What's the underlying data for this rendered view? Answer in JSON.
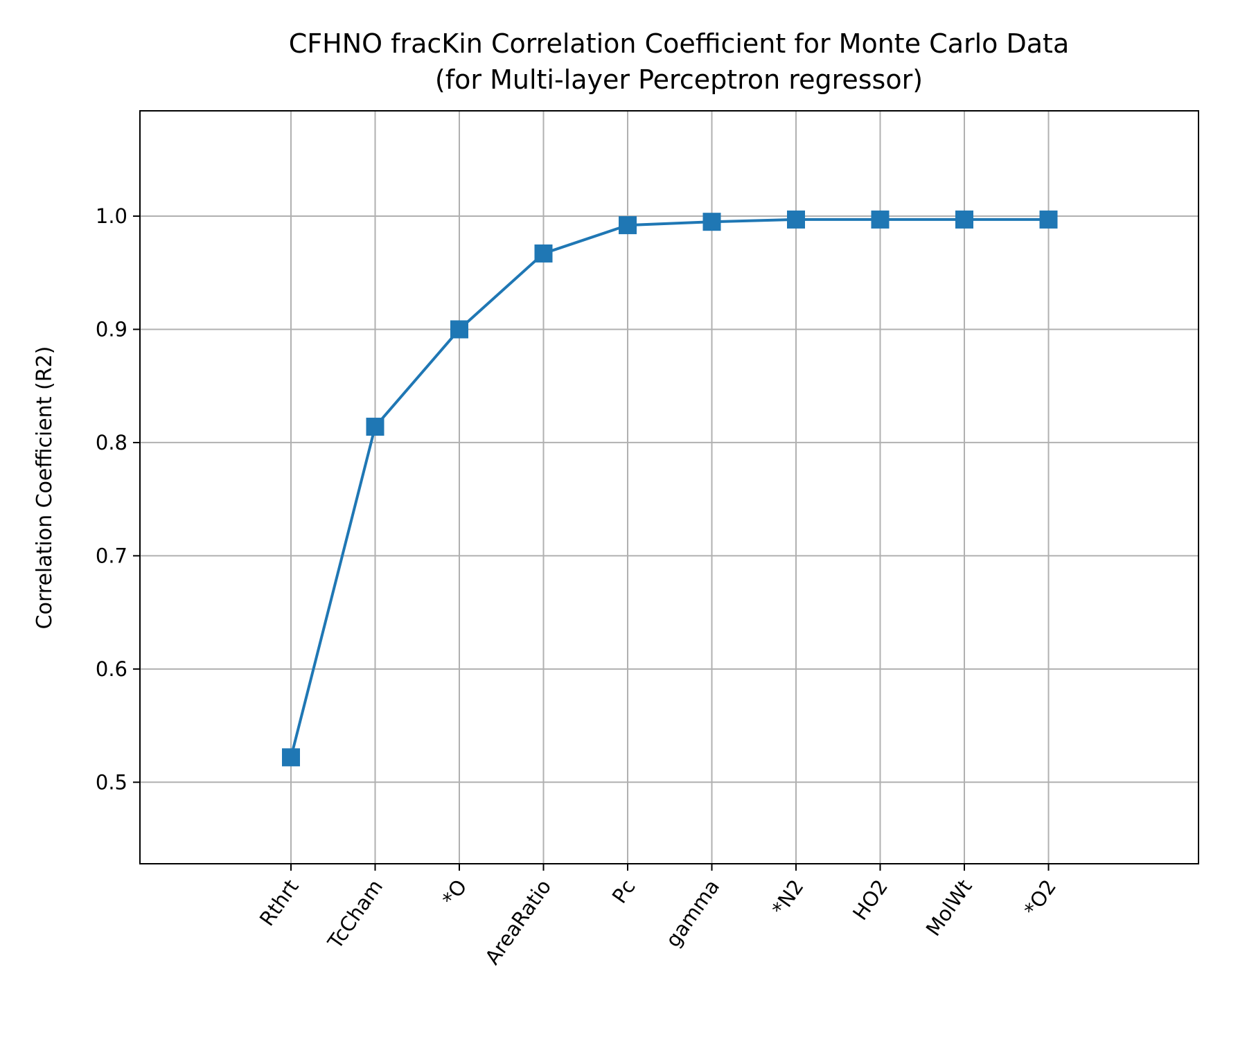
{
  "chart_data": {
    "type": "line",
    "title": "CFHNO fracKin Correlation Coefficient for Monte Carlo Data",
    "subtitle": "(for Multi-layer Perceptron regressor)",
    "xlabel": "",
    "ylabel": "Correlation Coefficient (R2)",
    "categories": [
      "Rthrt",
      "TcCham",
      "*O",
      "AreaRatio",
      "Pc",
      "gamma",
      "*N2",
      "HO2",
      "MolWt",
      "*O2"
    ],
    "series": [
      {
        "values": [
          0.522,
          0.814,
          0.9,
          0.967,
          0.992,
          0.995,
          0.997,
          0.997,
          0.997,
          0.997
        ],
        "color": "#1f77b4",
        "marker": "square"
      }
    ],
    "ylim": [
      0.428,
      1.093
    ],
    "yticks": [
      "0.5",
      "0.6",
      "0.7",
      "0.8",
      "0.9",
      "1.0"
    ],
    "ytick_values": [
      0.5,
      0.6,
      0.7,
      0.8,
      0.9,
      1.0
    ],
    "grid": true,
    "legend": "none"
  }
}
